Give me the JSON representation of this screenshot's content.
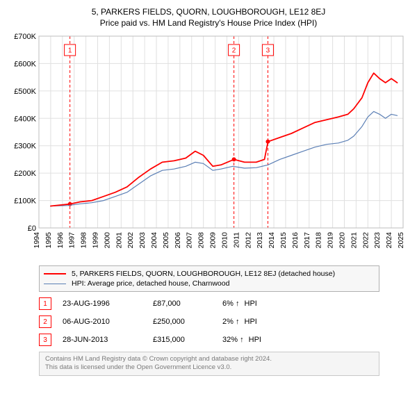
{
  "titles": {
    "line1": "5, PARKERS FIELDS, QUORN, LOUGHBOROUGH, LE12 8EJ",
    "line2": "Price paid vs. HM Land Registry's House Price Index (HPI)"
  },
  "chart": {
    "type": "line",
    "plot_bg": "#ffffff",
    "grid_color": "#e0e0e0",
    "grid_width": 1,
    "border_color": "#bdbdbd",
    "border_width": 1,
    "x": {
      "min": 1994,
      "max": 2025,
      "tick_step": 1,
      "label_rotation": -90,
      "labels": [
        "1994",
        "1995",
        "1996",
        "1997",
        "1998",
        "1999",
        "2000",
        "2001",
        "2002",
        "2003",
        "2004",
        "2005",
        "2006",
        "2007",
        "2008",
        "2009",
        "2010",
        "2011",
        "2012",
        "2013",
        "2014",
        "2015",
        "2016",
        "2017",
        "2018",
        "2019",
        "2020",
        "2021",
        "2022",
        "2023",
        "2024",
        "2025"
      ]
    },
    "y": {
      "min": 0,
      "max": 700000,
      "tick_step": 100000,
      "labels": [
        "£0",
        "£100K",
        "£200K",
        "£300K",
        "£400K",
        "£500K",
        "£600K",
        "£700K"
      ]
    },
    "series": [
      {
        "id": "price_paid",
        "label": "5, PARKERS FIELDS, QUORN, LOUGHBOROUGH, LE12 8EJ (detached house)",
        "color": "#ff0000",
        "stroke_width": 1.8,
        "points": [
          [
            1995.0,
            80000
          ],
          [
            1996.6,
            87000
          ],
          [
            1997.5,
            95000
          ],
          [
            1998.5,
            100000
          ],
          [
            1999.5,
            115000
          ],
          [
            2000.5,
            130000
          ],
          [
            2001.5,
            150000
          ],
          [
            2002.5,
            185000
          ],
          [
            2003.5,
            215000
          ],
          [
            2004.5,
            240000
          ],
          [
            2005.5,
            245000
          ],
          [
            2006.5,
            255000
          ],
          [
            2007.3,
            280000
          ],
          [
            2008.0,
            265000
          ],
          [
            2008.8,
            225000
          ],
          [
            2009.5,
            230000
          ],
          [
            2010.6,
            250000
          ],
          [
            2011.5,
            240000
          ],
          [
            2012.5,
            240000
          ],
          [
            2013.2,
            250000
          ],
          [
            2013.5,
            315000
          ],
          [
            2014.5,
            330000
          ],
          [
            2015.5,
            345000
          ],
          [
            2016.5,
            365000
          ],
          [
            2017.5,
            385000
          ],
          [
            2018.5,
            395000
          ],
          [
            2019.5,
            405000
          ],
          [
            2020.3,
            415000
          ],
          [
            2020.8,
            435000
          ],
          [
            2021.5,
            475000
          ],
          [
            2022.0,
            530000
          ],
          [
            2022.5,
            565000
          ],
          [
            2023.0,
            545000
          ],
          [
            2023.5,
            530000
          ],
          [
            2024.0,
            545000
          ],
          [
            2024.5,
            530000
          ]
        ]
      },
      {
        "id": "hpi",
        "label": "HPI: Average price, detached house, Charnwood",
        "color": "#5b7fb5",
        "stroke_width": 1.2,
        "points": [
          [
            1995.0,
            80000
          ],
          [
            1996.5,
            82000
          ],
          [
            1997.5,
            88000
          ],
          [
            1998.5,
            92000
          ],
          [
            1999.5,
            100000
          ],
          [
            2000.5,
            115000
          ],
          [
            2001.5,
            130000
          ],
          [
            2002.5,
            160000
          ],
          [
            2003.5,
            190000
          ],
          [
            2004.5,
            210000
          ],
          [
            2005.5,
            215000
          ],
          [
            2006.5,
            225000
          ],
          [
            2007.3,
            240000
          ],
          [
            2008.0,
            235000
          ],
          [
            2008.8,
            210000
          ],
          [
            2009.5,
            215000
          ],
          [
            2010.5,
            225000
          ],
          [
            2011.5,
            218000
          ],
          [
            2012.5,
            220000
          ],
          [
            2013.5,
            230000
          ],
          [
            2014.5,
            250000
          ],
          [
            2015.5,
            265000
          ],
          [
            2016.5,
            280000
          ],
          [
            2017.5,
            295000
          ],
          [
            2018.5,
            305000
          ],
          [
            2019.5,
            310000
          ],
          [
            2020.3,
            320000
          ],
          [
            2020.8,
            335000
          ],
          [
            2021.5,
            370000
          ],
          [
            2022.0,
            405000
          ],
          [
            2022.5,
            425000
          ],
          [
            2023.0,
            415000
          ],
          [
            2023.5,
            400000
          ],
          [
            2024.0,
            415000
          ],
          [
            2024.5,
            410000
          ]
        ]
      }
    ],
    "event_lines": {
      "color": "#ff0000",
      "dash": "4,3",
      "stroke_width": 1,
      "marker_offset_y": 12,
      "events": [
        {
          "n": "1",
          "x": 1996.64,
          "point_y": 87000
        },
        {
          "n": "2",
          "x": 2010.6,
          "point_y": 250000
        },
        {
          "n": "3",
          "x": 2013.49,
          "point_y": 315000
        }
      ]
    },
    "event_point_style": {
      "fill": "#ff0000",
      "radius": 3
    }
  },
  "legend": {
    "items": [
      {
        "color": "#ff0000",
        "width": 2,
        "label": "5, PARKERS FIELDS, QUORN, LOUGHBOROUGH, LE12 8EJ (detached house)"
      },
      {
        "color": "#5b7fb5",
        "width": 1,
        "label": "HPI: Average price, detached house, Charnwood"
      }
    ]
  },
  "event_table": {
    "arrow": "↑",
    "suffix": "HPI",
    "rows": [
      {
        "n": "1",
        "date": "23-AUG-1996",
        "price": "£87,000",
        "pct": "6%"
      },
      {
        "n": "2",
        "date": "06-AUG-2010",
        "price": "£250,000",
        "pct": "2%"
      },
      {
        "n": "3",
        "date": "28-JUN-2013",
        "price": "£315,000",
        "pct": "32%"
      }
    ]
  },
  "footer": {
    "line1": "Contains HM Land Registry data © Crown copyright and database right 2024.",
    "line2": "This data is licensed under the Open Government Licence v3.0."
  }
}
